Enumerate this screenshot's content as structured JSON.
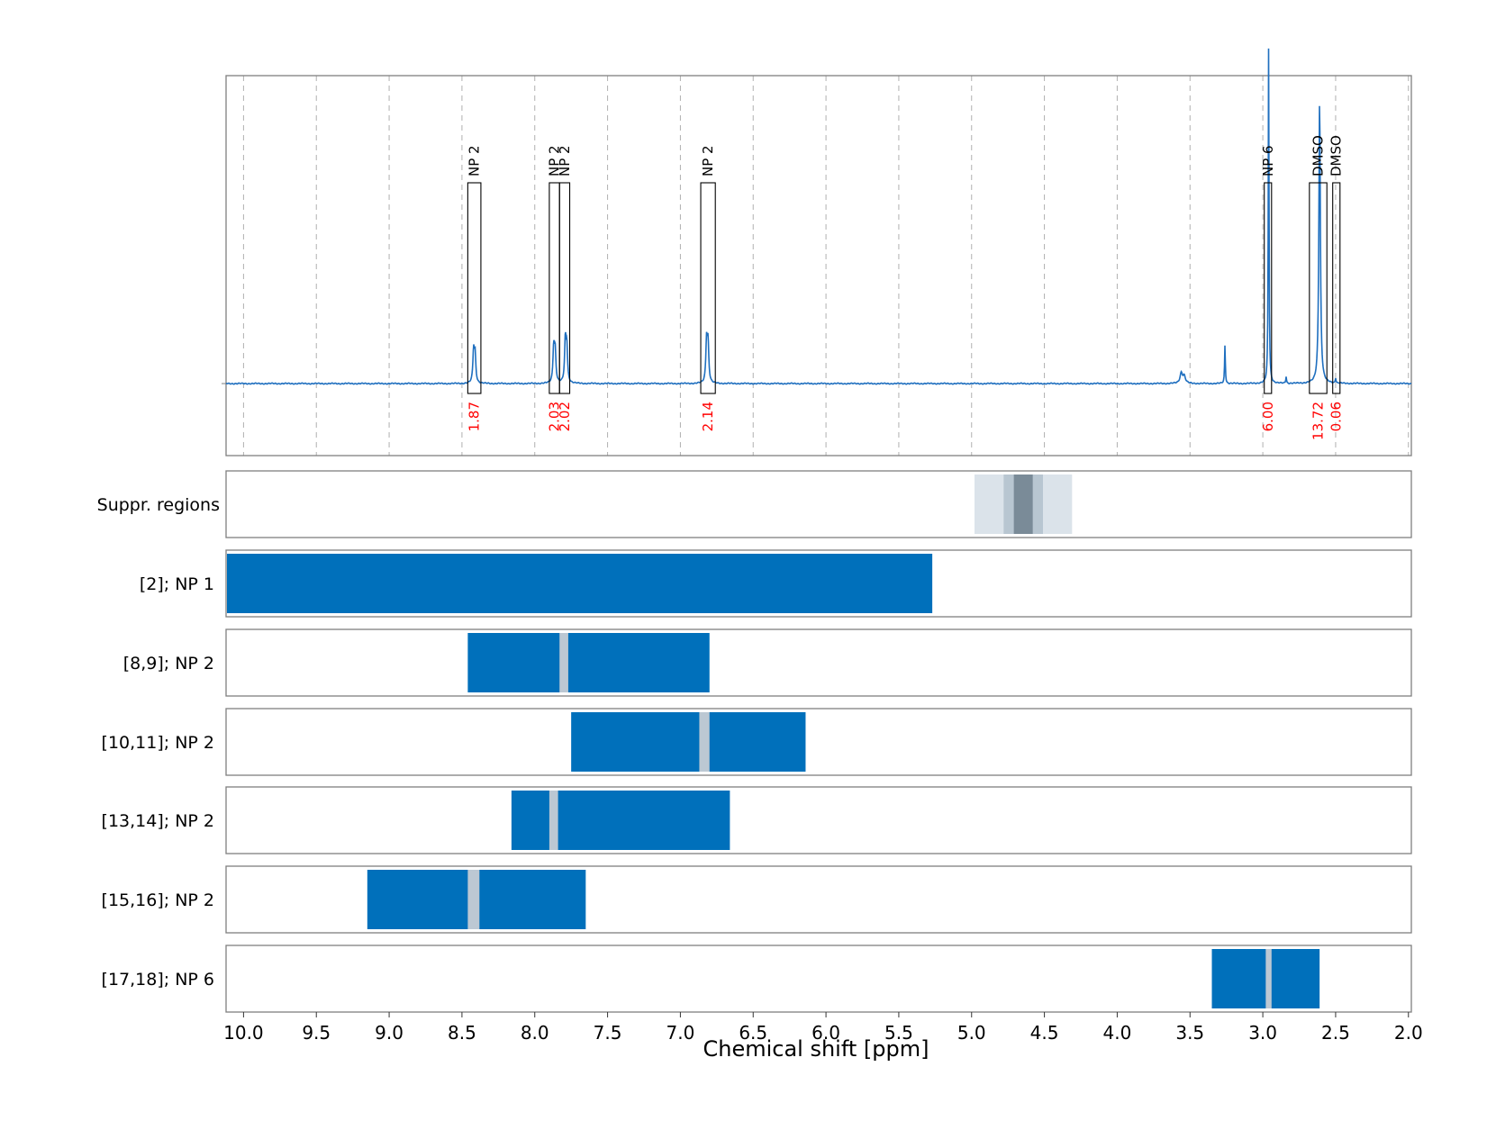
{
  "chart_data": {
    "type": "line",
    "xlabel": "Chemical shift [ppm]",
    "xlim": [
      10.12,
      1.98
    ],
    "x_ticks": [
      "10.0",
      "9.5",
      "9.0",
      "8.5",
      "8.0",
      "7.5",
      "7.0",
      "6.5",
      "6.0",
      "5.5",
      "5.0",
      "4.5",
      "4.0",
      "3.5",
      "3.0",
      "2.5",
      "2.0"
    ],
    "x_tick_values": [
      10.0,
      9.5,
      9.0,
      8.5,
      8.0,
      7.5,
      7.0,
      6.5,
      6.0,
      5.5,
      5.0,
      4.5,
      4.0,
      3.5,
      3.0,
      2.5,
      2.0
    ],
    "grid": true,
    "colors": {
      "spectrum": "#1f6fbf",
      "region": "#0070bb",
      "region_gap": "#bcc8d3",
      "suppr_light": "#dbe3ea",
      "suppr_mid": "#b8c6d1",
      "suppr_dark": "#7a8b98",
      "integral_text": "#ff0000",
      "grid": "#b0b0b0"
    },
    "spectrum": {
      "peaks": [
        {
          "ppm": 8.42,
          "height": 0.09,
          "width": 0.012
        },
        {
          "ppm": 8.41,
          "height": 0.08,
          "width": 0.012
        },
        {
          "ppm": 7.87,
          "height": 0.1,
          "width": 0.012
        },
        {
          "ppm": 7.86,
          "height": 0.09,
          "width": 0.012
        },
        {
          "ppm": 7.79,
          "height": 0.12,
          "width": 0.012
        },
        {
          "ppm": 7.78,
          "height": 0.1,
          "width": 0.012
        },
        {
          "ppm": 6.82,
          "height": 0.12,
          "width": 0.012
        },
        {
          "ppm": 6.81,
          "height": 0.11,
          "width": 0.012
        },
        {
          "ppm": 3.56,
          "height": 0.03,
          "width": 0.02
        },
        {
          "ppm": 3.54,
          "height": 0.02,
          "width": 0.02
        },
        {
          "ppm": 3.26,
          "height": 0.11,
          "width": 0.006
        },
        {
          "ppm": 2.96,
          "height": 0.97,
          "width": 0.006
        },
        {
          "ppm": 2.84,
          "height": 0.02,
          "width": 0.006
        },
        {
          "ppm": 2.61,
          "height": 0.81,
          "width": 0.012
        },
        {
          "ppm": 2.5,
          "height": 0.015,
          "width": 0.006
        }
      ]
    },
    "peak_annotations": [
      {
        "label": "NP 2",
        "integral": "1.87",
        "ppm_left": 8.46,
        "ppm_right": 8.37
      },
      {
        "label": "NP 2",
        "integral": "2.03",
        "ppm_left": 7.9,
        "ppm_right": 7.83
      },
      {
        "label": "NP 2",
        "integral": "2.02",
        "ppm_left": 7.83,
        "ppm_right": 7.76
      },
      {
        "label": "NP 2",
        "integral": "2.14",
        "ppm_left": 6.86,
        "ppm_right": 6.76
      },
      {
        "label": "NP 6",
        "integral": "6.00",
        "ppm_left": 2.99,
        "ppm_right": 2.94
      },
      {
        "label": "DMSO",
        "integral": "13.72",
        "ppm_left": 2.68,
        "ppm_right": 2.56
      },
      {
        "label": "DMSO",
        "integral": "0.06",
        "ppm_left": 2.52,
        "ppm_right": 2.47
      }
    ],
    "suppressed_regions": {
      "label": "Suppr. regions",
      "bands": [
        {
          "from": 4.98,
          "to": 4.31,
          "shade": "light"
        },
        {
          "from": 4.78,
          "to": 4.51,
          "shade": "mid"
        },
        {
          "from": 4.71,
          "to": 4.58,
          "shade": "dark"
        }
      ]
    },
    "region_rows": [
      {
        "label": "[2]; NP 1",
        "from": 10.12,
        "to": 5.27,
        "gap": null
      },
      {
        "label": "[8,9]; NP 2",
        "from": 8.46,
        "to": 6.8,
        "gap": [
          7.83,
          7.77
        ]
      },
      {
        "label": "[10,11]; NP 2",
        "from": 7.75,
        "to": 6.14,
        "gap": [
          6.87,
          6.8
        ]
      },
      {
        "label": "[13,14]; NP 2",
        "from": 8.16,
        "to": 6.66,
        "gap": [
          7.9,
          7.84
        ]
      },
      {
        "label": "[15,16]; NP 2",
        "from": 9.15,
        "to": 7.65,
        "gap": [
          8.46,
          8.38
        ]
      },
      {
        "label": "[17,18]; NP 6",
        "from": 3.35,
        "to": 2.61,
        "gap": [
          2.98,
          2.94
        ]
      }
    ]
  }
}
